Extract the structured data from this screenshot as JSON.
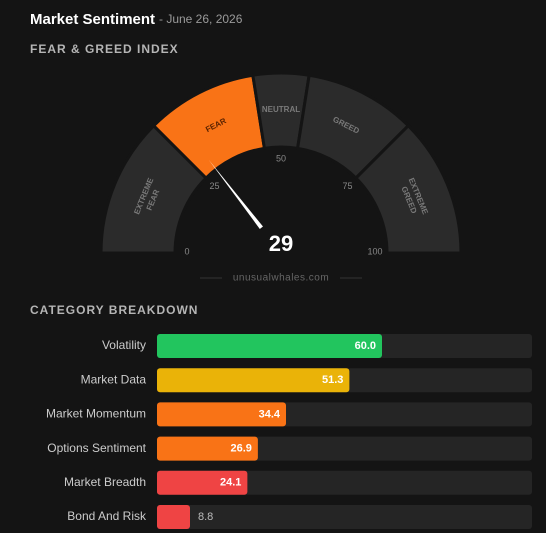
{
  "header": {
    "title": "Market Sentiment",
    "date": "- June 26, 2026"
  },
  "chart_data": [
    {
      "type": "gauge",
      "title": "FEAR & GREED INDEX",
      "value": 29,
      "xlim": [
        0,
        100
      ],
      "ticks": [
        0,
        25,
        50,
        75,
        100
      ],
      "segments": [
        {
          "name": "EXTREME FEAR",
          "range": [
            0,
            25
          ],
          "color": "#2b2b2b"
        },
        {
          "name": "FEAR",
          "range": [
            25,
            45
          ],
          "color": "#f97316"
        },
        {
          "name": "NEUTRAL",
          "range": [
            45,
            55
          ],
          "color": "#2b2b2b"
        },
        {
          "name": "GREED",
          "range": [
            55,
            75
          ],
          "color": "#2b2b2b"
        },
        {
          "name": "EXTREME GREED",
          "range": [
            75,
            100
          ],
          "color": "#2b2b2b"
        }
      ],
      "watermark": "unusualwhales.com"
    },
    {
      "type": "bar",
      "title": "CATEGORY BREAKDOWN",
      "xlim": [
        0,
        100
      ],
      "categories": [
        "Volatility",
        "Market Data",
        "Market Momentum",
        "Options Sentiment",
        "Market Breadth",
        "Bond And Risk"
      ],
      "values": [
        60.0,
        51.3,
        34.4,
        26.9,
        24.1,
        8.8
      ],
      "value_labels": [
        "60.0",
        "51.3",
        "34.4",
        "26.9",
        "24.1",
        "8.8"
      ],
      "colors": [
        "#22c55e",
        "#eab308",
        "#f97316",
        "#f97316",
        "#ef4444",
        "#ef4444"
      ]
    }
  ]
}
